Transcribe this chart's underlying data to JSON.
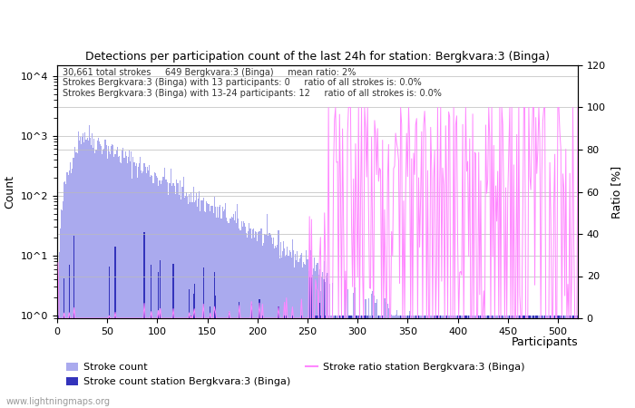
{
  "title": "Detections per participation count of the last 24h for station: Bergkvara:3 (Binga)",
  "annotation_line1": "30,661 total strokes     649 Bergkvara:3 (Binga)     mean ratio: 2%",
  "annotation_line2": "Strokes Bergkvara:3 (Binga) with 13 participants: 0     ratio of all strokes is: 0.0%",
  "annotation_line3": "Strokes Bergkvara:3 (Binga) with 13-24 participants: 12     ratio of all strokes is: 0.0%",
  "xlabel": "Participants",
  "ylabel_left": "Count",
  "ylabel_right": "Ratio [%]",
  "watermark": "www.lightningmaps.org",
  "x_max": 520,
  "ylim_right": [
    0,
    120
  ],
  "bar_total_color": "#aaaaee",
  "bar_station_color": "#3333bb",
  "ratio_line_color": "#ff88ff",
  "background_color": "#ffffff",
  "grid_color": "#bbbbbb"
}
